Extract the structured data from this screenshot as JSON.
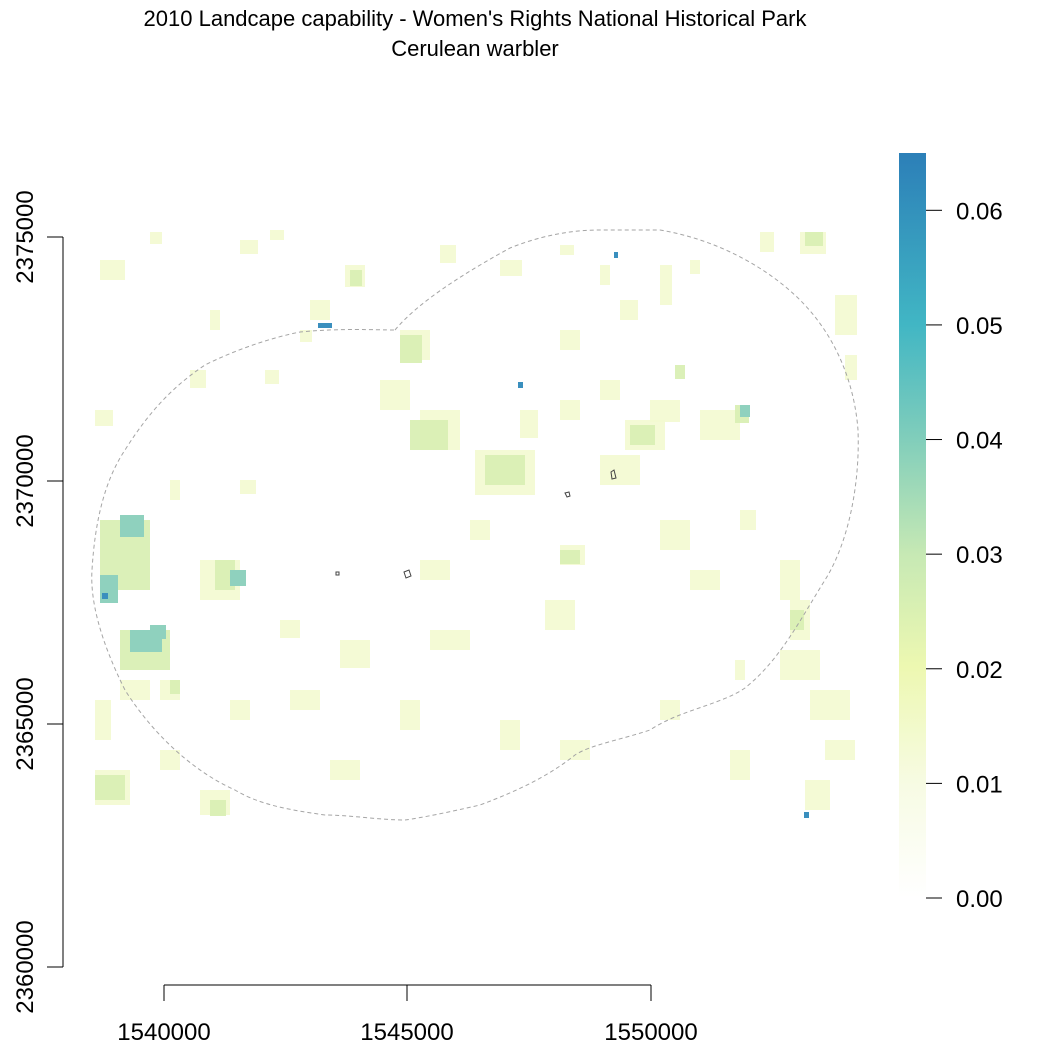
{
  "title": "2010 Landcape capability - Women's Rights National Historical Park",
  "subtitle": "Cerulean warbler",
  "x_axis": {
    "ticks": [
      "1540000",
      "1545000",
      "1550000"
    ]
  },
  "y_axis": {
    "ticks": [
      "2360000",
      "2365000",
      "2370000",
      "2375000"
    ]
  },
  "legend": {
    "ticks": [
      "0.00",
      "0.01",
      "0.02",
      "0.03",
      "0.04",
      "0.05",
      "0.06"
    ],
    "range": [
      0,
      0.065
    ],
    "colors": [
      "#ffffff",
      "#f7fbe4",
      "#edf8b1",
      "#c7e9b4",
      "#7fcdbb",
      "#41b6c4",
      "#2c7fb8"
    ]
  },
  "chart_data": {
    "type": "heatmap",
    "title": "2010 Landcape capability - Women's Rights National Historical Park",
    "subtitle": "Cerulean warbler",
    "xlim": [
      1538000,
      1554000
    ],
    "ylim": [
      2360000,
      2376000
    ],
    "value_range": [
      0,
      0.065
    ],
    "grid": false,
    "legend_position": "right"
  }
}
